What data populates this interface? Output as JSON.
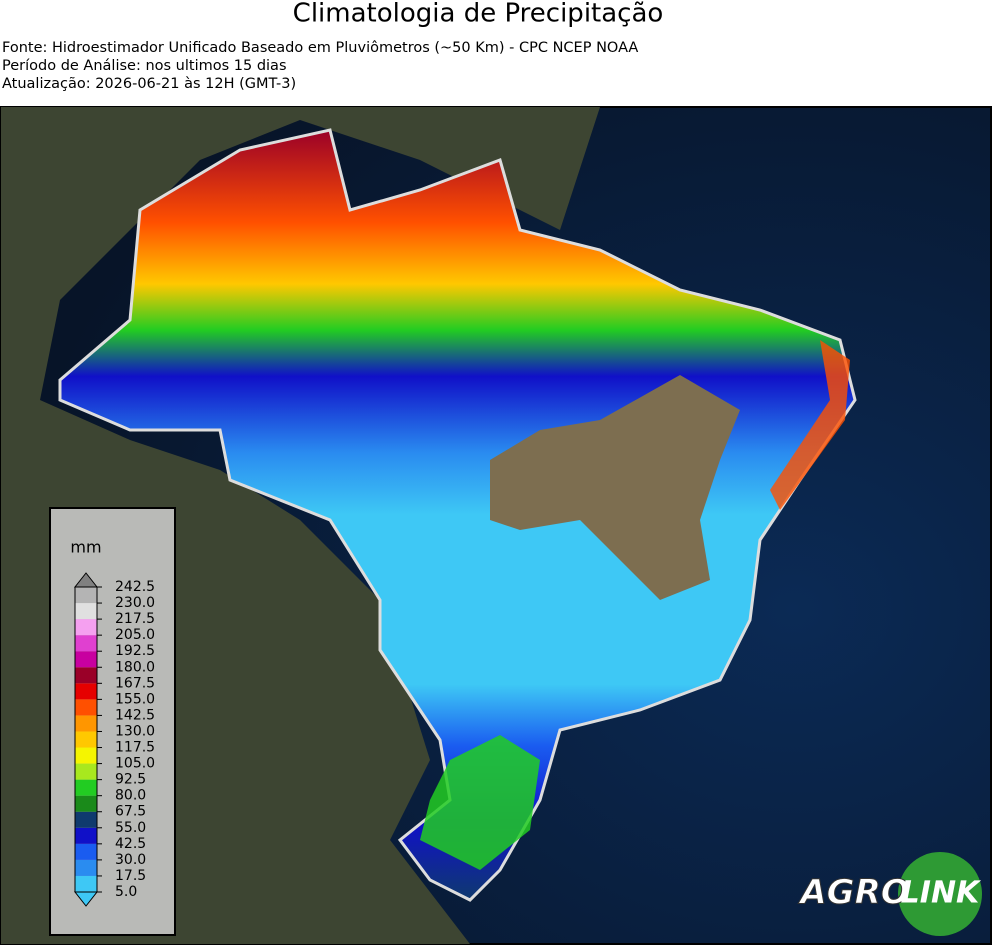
{
  "header": {
    "title": "Climatologia de Precipitação",
    "lines": [
      "Fonte: Hidroestimador Unificado Baseado em Pluviômetros (~50 Km) - CPC NCEP NOAA",
      "Período de Análise: nos ultimos 15 dias",
      "Atualização: 2026-06-21 às 12H (GMT-3)"
    ]
  },
  "colorbar": {
    "unit": "mm",
    "ticks": [
      {
        "value": 5,
        "label": "5.0"
      },
      17.5,
      {
        "value": 30,
        "label": "30.0"
      },
      42.5,
      {
        "value": 55,
        "label": "55.0"
      },
      67.5,
      {
        "value": 80,
        "label": "80.0"
      },
      92.5,
      {
        "value": 105,
        "label": "105.0"
      },
      117.5,
      {
        "value": 130,
        "label": "130.0"
      },
      142.5,
      {
        "value": 155,
        "label": "155.0"
      },
      167.5,
      {
        "value": 180,
        "label": "180.0"
      },
      192.5,
      {
        "value": 205,
        "label": "205.0"
      },
      217.5,
      {
        "value": 230,
        "label": "230.0"
      },
      242.5
    ],
    "colors": [
      "#3ec8f5",
      "#2a8cf0",
      "#1a5cf0",
      "#1010c8",
      "#0f3a6e",
      "#1a8a1a",
      "#22cc22",
      "#a8e81e",
      "#f5f500",
      "#ffc800",
      "#ff9600",
      "#ff5000",
      "#e60000",
      "#9a0028",
      "#c800a0",
      "#e040d0",
      "#f5a0f0",
      "#e0e0e0",
      "#b4b4b4"
    ],
    "under_color": "#3ec8f5",
    "over_color": "#808080"
  },
  "logo": {
    "left": "AGRO",
    "right": "LINK"
  }
}
